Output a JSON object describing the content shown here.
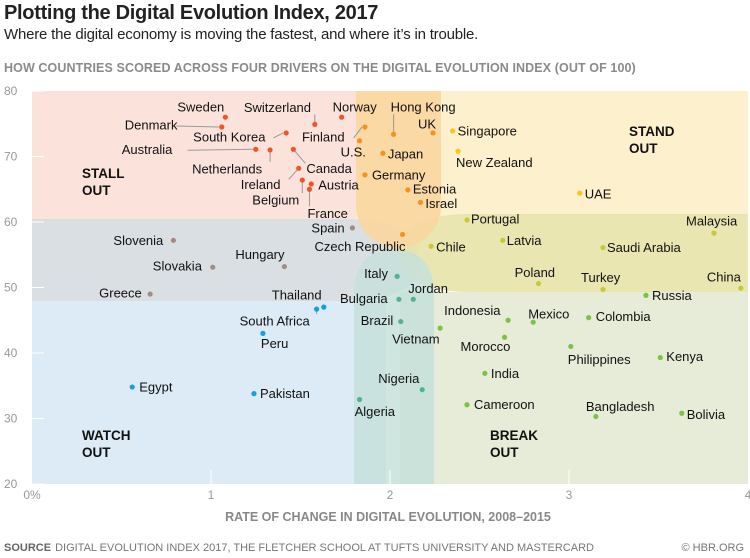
{
  "header": {
    "title": "Plotting the Digital Evolution Index, 2017",
    "subtitle": "Where the digital economy is moving the fastest, and where it’s in trouble.",
    "section_label": "HOW COUNTRIES SCORED ACROSS FOUR DRIVERS ON THE DIGITAL EVOLUTION INDEX (OUT OF 100)"
  },
  "footer": {
    "source_label": "SOURCE",
    "source_text": "DIGITAL EVOLUTION INDEX 2017, THE FLETCHER SCHOOL AT TUFTS UNIVERSITY AND MASTERCARD",
    "copyright": "© HBR.ORG"
  },
  "chart_data": {
    "type": "scatter",
    "title": "",
    "xlabel": "RATE OF CHANGE IN DIGITAL EVOLUTION, 2008–2015",
    "ylabel": "",
    "xlim": [
      0,
      4
    ],
    "ylim": [
      20,
      80
    ],
    "x_ticks": [
      "0%",
      "1",
      "2",
      "3",
      "4"
    ],
    "y_ticks": [
      "20",
      "30",
      "40",
      "50",
      "60",
      "70",
      "80"
    ],
    "grid": false,
    "zones": [
      {
        "label": "STALL OUT",
        "color": "#fbe3dc"
      },
      {
        "label": "STAND OUT",
        "color": "#fdf0cc"
      },
      {
        "label": "WATCH OUT",
        "color": "#dcebf5"
      },
      {
        "label": "BREAK OUT",
        "color": "#e6ecd8"
      }
    ],
    "group_colors": {
      "stall": "#ee5527",
      "stall-stand": "#f6921e",
      "stand": "#fbc515",
      "stand-break": "#c8c935",
      "stall-watch": "#a58c82",
      "watch": "#14a0dc",
      "watch-break": "#52b393",
      "break": "#7fc243"
    },
    "points": [
      {
        "name": "Sweden",
        "x": 1.08,
        "y": 76.0,
        "group": "stall"
      },
      {
        "name": "Denmark",
        "x": 1.06,
        "y": 74.5,
        "group": "stall"
      },
      {
        "name": "Australia",
        "x": 1.25,
        "y": 71.1,
        "group": "stall"
      },
      {
        "name": "Netherlands",
        "x": 1.33,
        "y": 71.0,
        "group": "stall"
      },
      {
        "name": "South Korea",
        "x": 1.42,
        "y": 73.6,
        "group": "stall"
      },
      {
        "name": "Canada",
        "x": 1.46,
        "y": 71.1,
        "group": "stall"
      },
      {
        "name": "Switzerland",
        "x": 1.58,
        "y": 74.9,
        "group": "stall"
      },
      {
        "name": "Norway",
        "x": 1.73,
        "y": 76.0,
        "group": "stall"
      },
      {
        "name": "Ireland",
        "x": 1.49,
        "y": 68.2,
        "group": "stall"
      },
      {
        "name": "Belgium",
        "x": 1.51,
        "y": 66.4,
        "group": "stall"
      },
      {
        "name": "Austria",
        "x": 1.56,
        "y": 65.8,
        "group": "stall"
      },
      {
        "name": "France",
        "x": 1.55,
        "y": 65.0,
        "group": "stall"
      },
      {
        "name": "Finland",
        "x": 1.86,
        "y": 74.5,
        "group": "stall-stand"
      },
      {
        "name": "U.S.",
        "x": 1.83,
        "y": 72.4,
        "group": "stall-stand"
      },
      {
        "name": "Hong Kong",
        "x": 2.02,
        "y": 73.4,
        "group": "stall-stand"
      },
      {
        "name": "UK",
        "x": 2.24,
        "y": 73.6,
        "group": "stall-stand"
      },
      {
        "name": "Japan",
        "x": 1.96,
        "y": 70.5,
        "group": "stall-stand"
      },
      {
        "name": "Germany",
        "x": 1.86,
        "y": 67.2,
        "group": "stall-stand"
      },
      {
        "name": "Estonia",
        "x": 2.1,
        "y": 64.9,
        "group": "stall-stand"
      },
      {
        "name": "Israel",
        "x": 2.17,
        "y": 63.0,
        "group": "stall-stand"
      },
      {
        "name": "Czech Republic",
        "x": 2.07,
        "y": 58.1,
        "group": "stall-stand"
      },
      {
        "name": "Singapore",
        "x": 2.35,
        "y": 73.9,
        "group": "stand"
      },
      {
        "name": "New Zealand",
        "x": 2.38,
        "y": 70.8,
        "group": "stand"
      },
      {
        "name": "UAE",
        "x": 3.06,
        "y": 64.4,
        "group": "stand"
      },
      {
        "name": "Portugal",
        "x": 2.43,
        "y": 60.3,
        "group": "stand-break"
      },
      {
        "name": "Latvia",
        "x": 2.63,
        "y": 57.2,
        "group": "stand-break"
      },
      {
        "name": "Chile",
        "x": 2.23,
        "y": 56.3,
        "group": "stand-break"
      },
      {
        "name": "Saudi Arabia",
        "x": 3.19,
        "y": 56.1,
        "group": "stand-break"
      },
      {
        "name": "Malaysia",
        "x": 3.81,
        "y": 58.3,
        "group": "stand-break"
      },
      {
        "name": "China",
        "x": 3.96,
        "y": 49.9,
        "group": "stand-break"
      },
      {
        "name": "Poland",
        "x": 2.83,
        "y": 50.6,
        "group": "stand-break"
      },
      {
        "name": "Turkey",
        "x": 3.19,
        "y": 49.7,
        "group": "stand-break"
      },
      {
        "name": "Spain",
        "x": 1.79,
        "y": 59.1,
        "group": "stall-watch"
      },
      {
        "name": "Slovenia",
        "x": 0.79,
        "y": 57.2,
        "group": "stall-watch"
      },
      {
        "name": "Slovakia",
        "x": 1.01,
        "y": 53.1,
        "group": "stall-watch"
      },
      {
        "name": "Hungary",
        "x": 1.41,
        "y": 53.2,
        "group": "stall-watch"
      },
      {
        "name": "Greece",
        "x": 0.66,
        "y": 49.0,
        "group": "stall-watch"
      },
      {
        "name": "Thailand",
        "x": 1.63,
        "y": 47.0,
        "group": "watch"
      },
      {
        "name": "South Africa",
        "x": 1.59,
        "y": 46.7,
        "group": "watch"
      },
      {
        "name": "Peru",
        "x": 1.29,
        "y": 43.0,
        "group": "watch"
      },
      {
        "name": "Egypt",
        "x": 0.56,
        "y": 34.8,
        "group": "watch"
      },
      {
        "name": "Pakistan",
        "x": 1.24,
        "y": 33.8,
        "group": "watch"
      },
      {
        "name": "Italy",
        "x": 2.04,
        "y": 51.7,
        "group": "watch-break"
      },
      {
        "name": "Bulgaria",
        "x": 2.05,
        "y": 48.2,
        "group": "watch-break"
      },
      {
        "name": "Jordan",
        "x": 2.13,
        "y": 48.2,
        "group": "watch-break"
      },
      {
        "name": "Brazil",
        "x": 2.06,
        "y": 44.8,
        "group": "watch-break"
      },
      {
        "name": "Nigeria",
        "x": 2.18,
        "y": 34.4,
        "group": "watch-break"
      },
      {
        "name": "Algeria",
        "x": 1.83,
        "y": 32.9,
        "group": "watch-break"
      },
      {
        "name": "Russia",
        "x": 3.43,
        "y": 48.8,
        "group": "break"
      },
      {
        "name": "Indonesia",
        "x": 2.66,
        "y": 45.0,
        "group": "break"
      },
      {
        "name": "Mexico",
        "x": 2.8,
        "y": 44.7,
        "group": "break"
      },
      {
        "name": "Colombia",
        "x": 3.11,
        "y": 45.4,
        "group": "break"
      },
      {
        "name": "Vietnam",
        "x": 2.28,
        "y": 43.8,
        "group": "break"
      },
      {
        "name": "Morocco",
        "x": 2.64,
        "y": 42.4,
        "group": "break"
      },
      {
        "name": "Philippines",
        "x": 3.01,
        "y": 41.0,
        "group": "break"
      },
      {
        "name": "Kenya",
        "x": 3.51,
        "y": 39.3,
        "group": "break"
      },
      {
        "name": "India",
        "x": 2.53,
        "y": 36.9,
        "group": "break"
      },
      {
        "name": "Cameroon",
        "x": 2.43,
        "y": 32.1,
        "group": "break"
      },
      {
        "name": "Bangladesh",
        "x": 3.15,
        "y": 30.3,
        "group": "break"
      },
      {
        "name": "Bolivia",
        "x": 3.63,
        "y": 30.8,
        "group": "break"
      }
    ]
  }
}
